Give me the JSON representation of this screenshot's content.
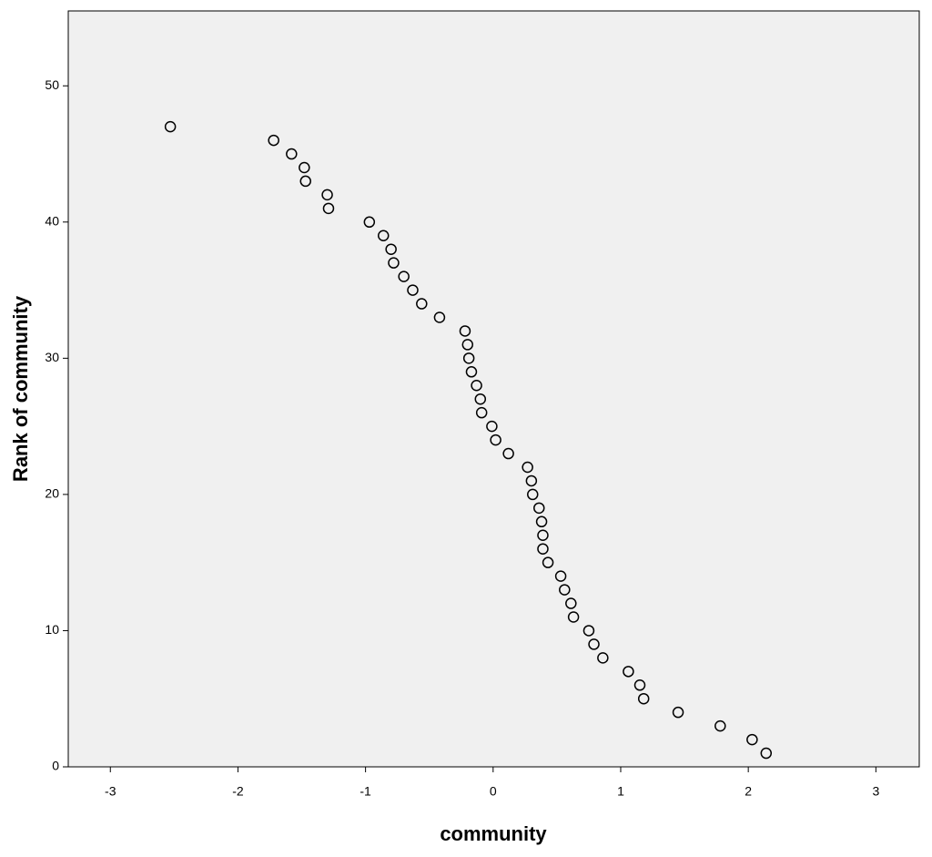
{
  "chart_data": {
    "type": "scatter",
    "xlabel": "community",
    "ylabel": "Rank of community",
    "x": [
      -2.53,
      -1.72,
      -1.58,
      -1.48,
      -1.47,
      -1.3,
      -1.29,
      -0.97,
      -0.86,
      -0.8,
      -0.78,
      -0.7,
      -0.63,
      -0.56,
      -0.42,
      -0.22,
      -0.2,
      -0.19,
      -0.17,
      -0.13,
      -0.1,
      -0.09,
      -0.01,
      0.02,
      0.12,
      0.27,
      0.3,
      0.31,
      0.36,
      0.38,
      0.39,
      0.39,
      0.43,
      0.53,
      0.56,
      0.61,
      0.63,
      0.75,
      0.79,
      0.86,
      1.06,
      1.15,
      1.18,
      1.45,
      1.78,
      2.03,
      2.14
    ],
    "values": [
      47,
      46,
      45,
      44,
      43,
      42,
      41,
      40,
      39,
      38,
      37,
      36,
      35,
      34,
      33,
      32,
      31,
      30,
      29,
      28,
      27,
      26,
      25,
      24,
      23,
      22,
      21,
      20,
      19,
      18,
      17,
      16,
      15,
      14,
      13,
      12,
      11,
      10,
      9,
      8,
      7,
      6,
      5,
      4,
      3,
      2,
      1
    ],
    "color": "#000000",
    "xlim": [
      -3.33,
      3.34
    ],
    "ylim": [
      0,
      55.5
    ],
    "xticks": [
      -3,
      -2,
      -1,
      0,
      1,
      2,
      3
    ],
    "yticks": [
      0,
      10,
      20,
      30,
      40,
      50
    ]
  }
}
